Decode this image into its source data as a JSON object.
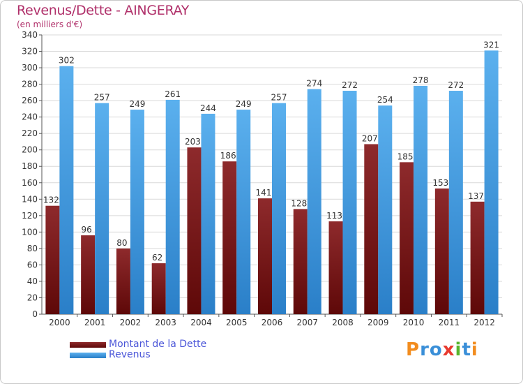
{
  "header": {
    "title": "Revenus/Dette - AINGERAY",
    "subtitle": "(en milliers d'€)"
  },
  "colors": {
    "dette": "#7a1a1c",
    "revenus": "#4aa3e6",
    "title": "#b0306a",
    "legend_text": "#4a55d8",
    "grid": "#d9d9d9",
    "plot_bg": "#ffffff"
  },
  "logo": {
    "text": "Proxiti",
    "letter_colors": [
      "#f28c1e",
      "#3a8fd8",
      "#3a8fd8",
      "#e83a2f",
      "#58b52c",
      "#3a8fd8",
      "#f28c1e"
    ]
  },
  "chart_data": {
    "type": "bar",
    "title": "Revenus/Dette - AINGERAY",
    "subtitle": "(en milliers d'€)",
    "categories": [
      "2000",
      "2001",
      "2002",
      "2003",
      "2004",
      "2005",
      "2006",
      "2007",
      "2008",
      "2009",
      "2010",
      "2011",
      "2012"
    ],
    "series": [
      {
        "name": "Montant de la Dette",
        "values": [
          132,
          96,
          80,
          62,
          203,
          186,
          141,
          128,
          113,
          207,
          185,
          153,
          137
        ]
      },
      {
        "name": "Revenus",
        "values": [
          302,
          257,
          249,
          261,
          244,
          249,
          257,
          274,
          272,
          254,
          278,
          272,
          321
        ]
      }
    ],
    "ylim": [
      0,
      340
    ],
    "ytick_step": 20,
    "grid": true,
    "legend_position": "bottom-left"
  }
}
